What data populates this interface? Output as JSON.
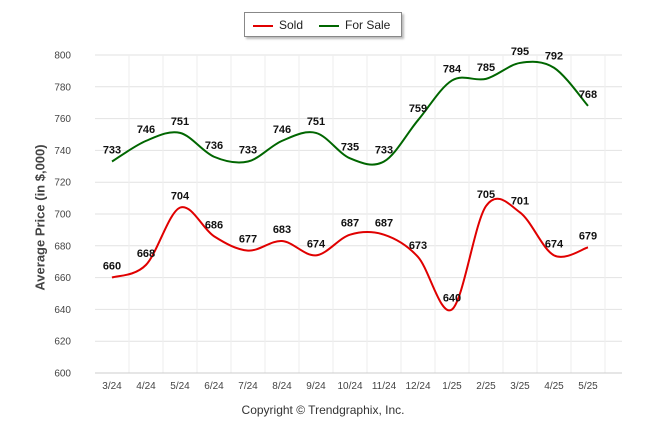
{
  "chart_data": {
    "type": "line",
    "categories": [
      "3/24",
      "4/24",
      "5/24",
      "6/24",
      "7/24",
      "8/24",
      "9/24",
      "10/24",
      "11/24",
      "12/24",
      "1/25",
      "2/25",
      "3/25",
      "4/25",
      "5/25"
    ],
    "series": [
      {
        "name": "Sold",
        "color": "#e00000",
        "values": [
          660,
          668,
          704,
          686,
          677,
          683,
          674,
          687,
          687,
          673,
          640,
          705,
          701,
          674,
          679
        ]
      },
      {
        "name": "For Sale",
        "color": "#006600",
        "values": [
          733,
          746,
          751,
          736,
          733,
          746,
          751,
          735,
          733,
          759,
          784,
          785,
          795,
          792,
          768
        ]
      }
    ],
    "ylabel": "Average Price (in $,000)",
    "xlabel": "",
    "ylim": [
      600,
      800
    ],
    "yticks": [
      600,
      620,
      640,
      660,
      680,
      700,
      720,
      740,
      760,
      780,
      800
    ],
    "grid": true,
    "legend": "top-center",
    "footer": "Copyright © Trendgraphix, Inc."
  }
}
